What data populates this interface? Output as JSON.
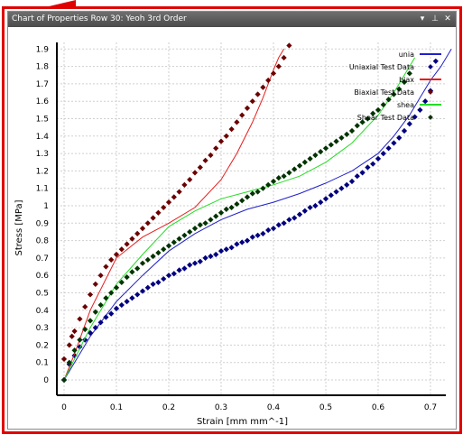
{
  "window": {
    "title": "Chart of Properties Row 30: Yeoh 3rd Order",
    "dropdown_icon": "chevron-down-icon",
    "pin_icon": "pin-icon",
    "close_icon": "close-icon"
  },
  "colors": {
    "frame_highlight": "#e00000",
    "uniaxial": "#1f1fcc",
    "uniaxial_points": "#00007f",
    "biaxial": "#e81c1c",
    "biaxial_points": "#6b0000",
    "shear": "#22dd22",
    "shear_points": "#003300"
  },
  "chart_data": {
    "type": "line",
    "xlabel": "Strain  [mm mm^-1]",
    "ylabel": "Stress  [MPa]",
    "xlim": [
      0,
      0.75
    ],
    "ylim": [
      0,
      1.9
    ],
    "x_ticks": [
      "0",
      "0.1",
      "0.2",
      "0.3",
      "0.4",
      "0.5",
      "0.6",
      "0.7"
    ],
    "y_ticks": [
      "0",
      "0.1",
      "0.2",
      "0.3",
      "0.4",
      "0.5",
      "0.6",
      "0.7",
      "0.8",
      "0.9",
      "1",
      "1.1",
      "1.2",
      "1.3",
      "1.4",
      "1.5",
      "1.6",
      "1.7",
      "1.8",
      "1.9"
    ],
    "grid": true,
    "legend_position": "top-right",
    "series": [
      {
        "name": "unia",
        "kind": "line",
        "x": [
          0,
          0.02,
          0.05,
          0.1,
          0.15,
          0.2,
          0.25,
          0.3,
          0.35,
          0.4,
          0.45,
          0.5,
          0.55,
          0.6,
          0.63,
          0.66,
          0.68,
          0.7,
          0.72,
          0.74
        ],
        "y": [
          0,
          0.1,
          0.25,
          0.45,
          0.6,
          0.74,
          0.84,
          0.92,
          0.98,
          1.02,
          1.07,
          1.13,
          1.2,
          1.3,
          1.4,
          1.52,
          1.62,
          1.72,
          1.8,
          1.9
        ]
      },
      {
        "name": "Uniaxial Test Data",
        "kind": "points",
        "x": [
          0,
          0.01,
          0.02,
          0.03,
          0.04,
          0.05,
          0.06,
          0.07,
          0.08,
          0.09,
          0.1,
          0.11,
          0.12,
          0.13,
          0.14,
          0.15,
          0.16,
          0.17,
          0.18,
          0.19,
          0.2,
          0.21,
          0.22,
          0.23,
          0.24,
          0.25,
          0.26,
          0.27,
          0.28,
          0.29,
          0.3,
          0.31,
          0.32,
          0.33,
          0.34,
          0.35,
          0.36,
          0.37,
          0.38,
          0.39,
          0.4,
          0.41,
          0.42,
          0.43,
          0.44,
          0.45,
          0.46,
          0.47,
          0.48,
          0.49,
          0.5,
          0.51,
          0.52,
          0.53,
          0.54,
          0.55,
          0.56,
          0.57,
          0.58,
          0.59,
          0.6,
          0.61,
          0.62,
          0.63,
          0.64,
          0.65,
          0.66,
          0.67,
          0.68,
          0.69,
          0.7,
          0.71
        ],
        "y": [
          0,
          0.09,
          0.14,
          0.19,
          0.23,
          0.27,
          0.3,
          0.33,
          0.36,
          0.38,
          0.41,
          0.43,
          0.45,
          0.47,
          0.49,
          0.51,
          0.53,
          0.55,
          0.56,
          0.58,
          0.6,
          0.61,
          0.63,
          0.64,
          0.66,
          0.67,
          0.68,
          0.7,
          0.71,
          0.72,
          0.74,
          0.75,
          0.76,
          0.78,
          0.79,
          0.8,
          0.82,
          0.83,
          0.84,
          0.86,
          0.87,
          0.89,
          0.9,
          0.92,
          0.93,
          0.95,
          0.97,
          0.99,
          1.0,
          1.02,
          1.04,
          1.06,
          1.08,
          1.1,
          1.12,
          1.14,
          1.17,
          1.19,
          1.22,
          1.24,
          1.27,
          1.3,
          1.33,
          1.36,
          1.39,
          1.43,
          1.47,
          1.51,
          1.55,
          1.6,
          1.66,
          1.83
        ]
      },
      {
        "name": "biax",
        "kind": "line",
        "x": [
          0,
          0.02,
          0.05,
          0.1,
          0.15,
          0.2,
          0.25,
          0.3,
          0.33,
          0.36,
          0.38,
          0.4,
          0.41,
          0.42
        ],
        "y": [
          0,
          0.15,
          0.4,
          0.7,
          0.82,
          0.9,
          0.99,
          1.15,
          1.3,
          1.48,
          1.62,
          1.78,
          1.85,
          1.9
        ]
      },
      {
        "name": "Biaxial Test Data",
        "kind": "points",
        "x": [
          0,
          0.01,
          0.015,
          0.02,
          0.03,
          0.04,
          0.05,
          0.06,
          0.07,
          0.08,
          0.09,
          0.1,
          0.11,
          0.12,
          0.13,
          0.14,
          0.15,
          0.16,
          0.17,
          0.18,
          0.19,
          0.2,
          0.21,
          0.22,
          0.23,
          0.24,
          0.25,
          0.26,
          0.27,
          0.28,
          0.29,
          0.3,
          0.31,
          0.32,
          0.33,
          0.34,
          0.35,
          0.36,
          0.37,
          0.38,
          0.39,
          0.4,
          0.41,
          0.42,
          0.43
        ],
        "y": [
          0.12,
          0.2,
          0.25,
          0.28,
          0.35,
          0.42,
          0.49,
          0.55,
          0.6,
          0.65,
          0.69,
          0.72,
          0.75,
          0.78,
          0.81,
          0.84,
          0.87,
          0.9,
          0.93,
          0.96,
          0.99,
          1.02,
          1.05,
          1.08,
          1.12,
          1.15,
          1.19,
          1.22,
          1.26,
          1.29,
          1.33,
          1.37,
          1.4,
          1.44,
          1.48,
          1.52,
          1.56,
          1.6,
          1.64,
          1.68,
          1.72,
          1.76,
          1.8,
          1.85,
          1.92
        ]
      },
      {
        "name": "shea",
        "kind": "line",
        "x": [
          0,
          0.02,
          0.05,
          0.1,
          0.15,
          0.2,
          0.25,
          0.3,
          0.35,
          0.4,
          0.45,
          0.5,
          0.55,
          0.6,
          0.63,
          0.65,
          0.67
        ],
        "y": [
          0,
          0.12,
          0.3,
          0.55,
          0.72,
          0.88,
          0.97,
          1.04,
          1.08,
          1.12,
          1.17,
          1.25,
          1.36,
          1.52,
          1.65,
          1.75,
          1.85
        ]
      },
      {
        "name": "Shear Test Data",
        "kind": "points",
        "x": [
          0,
          0.01,
          0.02,
          0.03,
          0.04,
          0.05,
          0.06,
          0.07,
          0.08,
          0.09,
          0.1,
          0.11,
          0.12,
          0.13,
          0.14,
          0.15,
          0.16,
          0.17,
          0.18,
          0.19,
          0.2,
          0.21,
          0.22,
          0.23,
          0.24,
          0.25,
          0.26,
          0.27,
          0.28,
          0.29,
          0.3,
          0.31,
          0.32,
          0.33,
          0.34,
          0.35,
          0.36,
          0.37,
          0.38,
          0.39,
          0.4,
          0.41,
          0.42,
          0.43,
          0.44,
          0.45,
          0.46,
          0.47,
          0.48,
          0.49,
          0.5,
          0.51,
          0.52,
          0.53,
          0.54,
          0.55,
          0.56,
          0.57,
          0.58,
          0.59,
          0.6,
          0.61,
          0.62,
          0.63,
          0.64,
          0.65,
          0.66
        ],
        "y": [
          0,
          0.1,
          0.17,
          0.23,
          0.29,
          0.34,
          0.39,
          0.43,
          0.47,
          0.5,
          0.53,
          0.56,
          0.59,
          0.62,
          0.64,
          0.67,
          0.69,
          0.71,
          0.73,
          0.75,
          0.77,
          0.79,
          0.81,
          0.83,
          0.85,
          0.87,
          0.89,
          0.9,
          0.92,
          0.94,
          0.96,
          0.98,
          0.99,
          1.01,
          1.03,
          1.05,
          1.07,
          1.08,
          1.1,
          1.12,
          1.14,
          1.16,
          1.17,
          1.19,
          1.21,
          1.23,
          1.25,
          1.27,
          1.29,
          1.31,
          1.33,
          1.35,
          1.37,
          1.39,
          1.41,
          1.43,
          1.46,
          1.48,
          1.5,
          1.53,
          1.55,
          1.58,
          1.61,
          1.64,
          1.67,
          1.71,
          1.76
        ]
      }
    ]
  }
}
